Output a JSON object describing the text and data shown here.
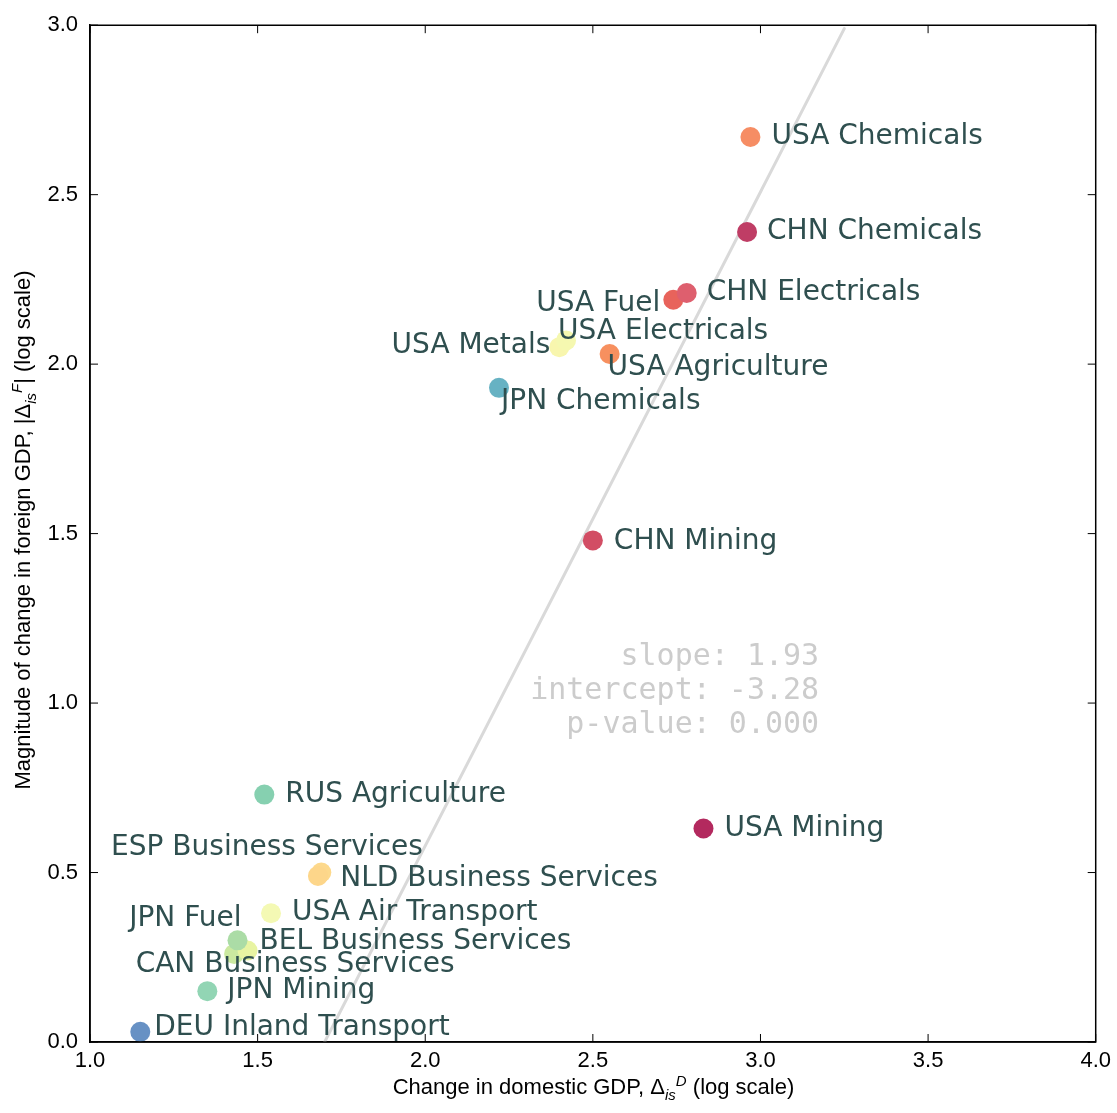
{
  "chart_data": {
    "type": "scatter",
    "xlabel": "Change in domestic GDP, Δ$_{is}$$^{D}$ (log scale)",
    "ylabel": "Magnitude of change in foreign GDP, |Δ$_{is}$$^{F}$| (log scale)",
    "xlim": [
      1.0,
      4.0
    ],
    "ylim": [
      0.0,
      3.0
    ],
    "xticks": [
      {
        "value": 1.0,
        "label": "1.0"
      },
      {
        "value": 1.5,
        "label": "1.5"
      },
      {
        "value": 2.0,
        "label": "2.0"
      },
      {
        "value": 2.5,
        "label": "2.5"
      },
      {
        "value": 3.0,
        "label": "3.0"
      },
      {
        "value": 3.5,
        "label": "3.5"
      },
      {
        "value": 4.0,
        "label": "4.0"
      }
    ],
    "yticks": [
      {
        "value": 0.0,
        "label": "0.0"
      },
      {
        "value": 0.5,
        "label": "0.5"
      },
      {
        "value": 1.0,
        "label": "1.0"
      },
      {
        "value": 1.5,
        "label": "1.5"
      },
      {
        "value": 2.0,
        "label": "2.0"
      },
      {
        "value": 2.5,
        "label": "2.5"
      },
      {
        "value": 3.0,
        "label": "3.0"
      }
    ],
    "marker": "circle",
    "annotations": [
      "slope: 1.93",
      "intercept: -3.28",
      "p-value: 0.000"
    ],
    "series": [
      {
        "type": "line",
        "marker": "none",
        "color": "#d9d9d9",
        "x": [
          1.7,
          3.25
        ],
        "values": [
          0.0,
          2.99
        ]
      },
      {
        "name": "USA Chemicals",
        "color": "#f68d64",
        "x": [
          2.97
        ],
        "values": [
          2.67
        ]
      },
      {
        "name": "CHN Chemicals",
        "color": "#bf3d65",
        "x": [
          2.96
        ],
        "values": [
          2.39
        ]
      },
      {
        "name": "CHN Electricals",
        "color": "#de5f6e",
        "x": [
          2.78
        ],
        "values": [
          2.21
        ]
      },
      {
        "name": "USA Fuel",
        "color": "#e8635b",
        "x": [
          2.74
        ],
        "values": [
          2.19
        ]
      },
      {
        "name": "USA Electricals",
        "color": "#f5f8b0",
        "x": [
          2.42
        ],
        "values": [
          2.07
        ]
      },
      {
        "name": "USA Metals",
        "color": "#f8f6ae",
        "x": [
          2.4
        ],
        "values": [
          2.05
        ]
      },
      {
        "name": "USA Agriculture",
        "color": "#f7905f",
        "x": [
          2.55
        ],
        "values": [
          2.03
        ]
      },
      {
        "name": "JPN Chemicals",
        "color": "#67b2c3",
        "x": [
          2.22
        ],
        "values": [
          1.93
        ]
      },
      {
        "name": "CHN Mining",
        "color": "#d24d64",
        "x": [
          2.5
        ],
        "values": [
          1.48
        ]
      },
      {
        "name": "USA Mining",
        "color": "#b3295e",
        "x": [
          2.83
        ],
        "values": [
          0.63
        ]
      },
      {
        "name": "RUS Agriculture",
        "color": "#86d0b0",
        "x": [
          1.52
        ],
        "values": [
          0.73
        ]
      },
      {
        "name": "ESP Business Services",
        "color": "#fdd68a",
        "x": [
          1.68
        ],
        "values": [
          0.49
        ]
      },
      {
        "name": "NLD Business Services",
        "color": "#fdd98c",
        "x": [
          1.69
        ],
        "values": [
          0.5
        ]
      },
      {
        "name": "USA Air Transport",
        "color": "#f4f9b4",
        "x": [
          1.54
        ],
        "values": [
          0.38
        ]
      },
      {
        "name": "JPN Fuel",
        "color": "#abdca6",
        "x": [
          1.44
        ],
        "values": [
          0.3
        ]
      },
      {
        "name": "BEL Business Services",
        "color": "#e8f4a2",
        "x": [
          1.47
        ],
        "values": [
          0.27
        ]
      },
      {
        "name": "CAN Business Services",
        "color": "#cbe9a0",
        "x": [
          1.43
        ],
        "values": [
          0.26
        ]
      },
      {
        "name": "JPN Mining",
        "color": "#92d5b4",
        "x": [
          1.35
        ],
        "values": [
          0.15
        ]
      },
      {
        "name": "DEU Inland Transport",
        "color": "#6791c4",
        "x": [
          1.15
        ],
        "values": [
          0.03
        ]
      }
    ]
  }
}
